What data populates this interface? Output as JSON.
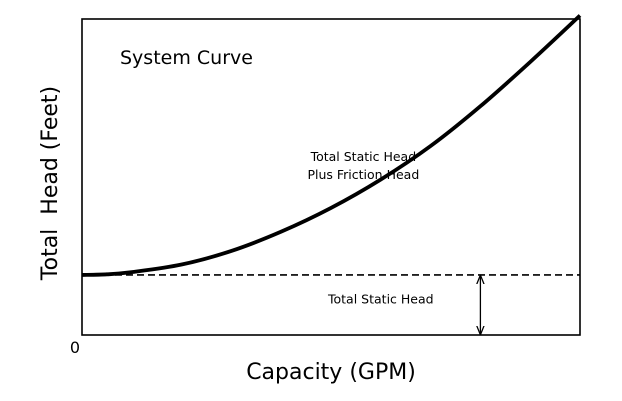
{
  "chart_data": {
    "type": "line",
    "title": "System Curve",
    "xlabel": "Capacity (GPM)",
    "ylabel": "Total  Head (Feet)",
    "origin_label": "0",
    "xlim": [
      0,
      100
    ],
    "ylim": [
      0,
      100
    ],
    "grid": false,
    "series": [
      {
        "label": "Total Static Head Plus Friction Head",
        "style": "solid",
        "x": [
          0,
          5,
          10,
          20,
          30,
          40,
          50,
          60,
          70,
          80,
          90,
          100
        ],
        "y": [
          19,
          19.2,
          19.9,
          22.3,
          26.6,
          32.7,
          40.2,
          49.2,
          59.8,
          72.4,
          86.4,
          101.1
        ]
      },
      {
        "label": "Total Static Head",
        "style": "dashed",
        "x": [
          0,
          100
        ],
        "y": [
          19,
          19
        ]
      }
    ],
    "annotations": [
      {
        "name": "curve-label",
        "lines": [
          "Total Static Head",
          "Plus Friction Head"
        ],
        "x": 56.5,
        "y": 55
      },
      {
        "name": "static-head-label",
        "text": "Total Static Head",
        "x": 60,
        "y": 10
      }
    ],
    "static_head_arrow": {
      "x": 80,
      "from_y": 0,
      "to_y": 19
    },
    "colors": {
      "line": "#000000",
      "background": "#ffffff"
    }
  }
}
